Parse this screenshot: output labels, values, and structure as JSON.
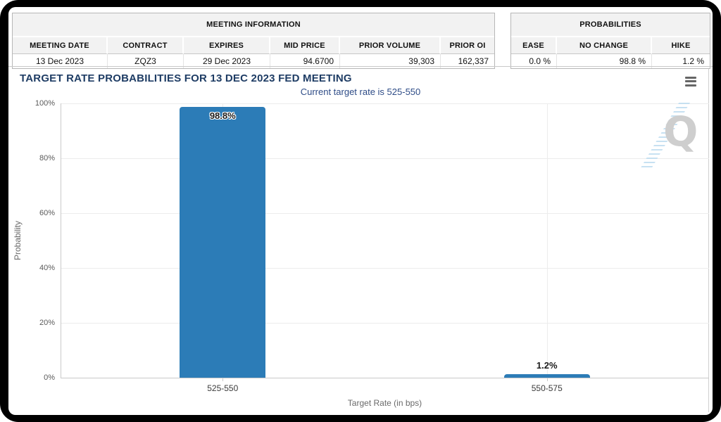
{
  "meeting_info_table": {
    "title": "MEETING INFORMATION",
    "columns": [
      "MEETING DATE",
      "CONTRACT",
      "EXPIRES",
      "MID PRICE",
      "PRIOR VOLUME",
      "PRIOR OI"
    ],
    "values": [
      "13 Dec 2023",
      "ZQZ3",
      "29 Dec 2023",
      "94.6700",
      "39,303",
      "162,337"
    ]
  },
  "probabilities_table": {
    "title": "PROBABILITIES",
    "columns": [
      "EASE",
      "NO CHANGE",
      "HIKE"
    ],
    "values": [
      "0.0 %",
      "98.8 %",
      "1.2 %"
    ]
  },
  "chart": {
    "menu_icon": "hamburger-menu",
    "watermark_letter": "Q"
  },
  "chart_data": {
    "type": "bar",
    "title": "TARGET RATE PROBABILITIES FOR 13 DEC 2023 FED MEETING",
    "subtitle": "Current target rate is 525-550",
    "categories": [
      "525-550",
      "550-575"
    ],
    "values": [
      98.8,
      1.2
    ],
    "data_labels": [
      "98.8%",
      "1.2%"
    ],
    "xlabel": "Target Rate (in bps)",
    "ylabel": "Probability",
    "ylim": [
      0,
      100
    ],
    "ytick_step": 20,
    "yticks": [
      "0%",
      "20%",
      "40%",
      "60%",
      "80%",
      "100%"
    ],
    "grid": true,
    "legend": "none",
    "bar_color": "#2c7cb7"
  },
  "colors": {
    "title_navy": "#1e3c64",
    "subtitle_navy": "#2e4c87",
    "bar_blue": "#2c7cb7",
    "axis_text_gray": "#5a5a5a",
    "watermark_gray": "#c6c6c6",
    "watermark_blue": "#bedcf0"
  }
}
